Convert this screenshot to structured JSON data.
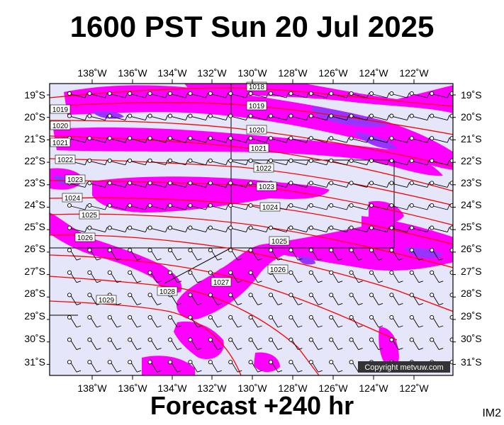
{
  "title": "1600 PST Sun 20 Jul 2025",
  "footer": "Forecast +240 hr",
  "product_tag": "IM2",
  "copyright": "Copyright metvuw.com",
  "lon_labels": [
    "138˚W",
    "136˚W",
    "134˚W",
    "132˚W",
    "130˚W",
    "128˚W",
    "126˚W",
    "124˚W",
    "122˚W"
  ],
  "lat_labels": [
    "19˚S",
    "20˚S",
    "21˚S",
    "22˚S",
    "23˚S",
    "24˚S",
    "25˚S",
    "26˚S",
    "27˚S",
    "28˚S",
    "29˚S",
    "30˚S",
    "31˚S"
  ],
  "pressure_labels": [
    "1018",
    "1019",
    "1019",
    "1020",
    "1020",
    "1021",
    "1021",
    "1022",
    "1022",
    "1023",
    "1023",
    "1024",
    "1024",
    "1025",
    "1025",
    "1026",
    "1026",
    "1027",
    "1028",
    "1029"
  ],
  "colors": {
    "background": "#e6e6fa",
    "precip_light": "#ff00ff",
    "precip_heavy": "#9933ff",
    "isobar": "#ff0000",
    "frame": "#000000"
  },
  "icons": {
    "wind_barb": "wind-barb-icon"
  }
}
